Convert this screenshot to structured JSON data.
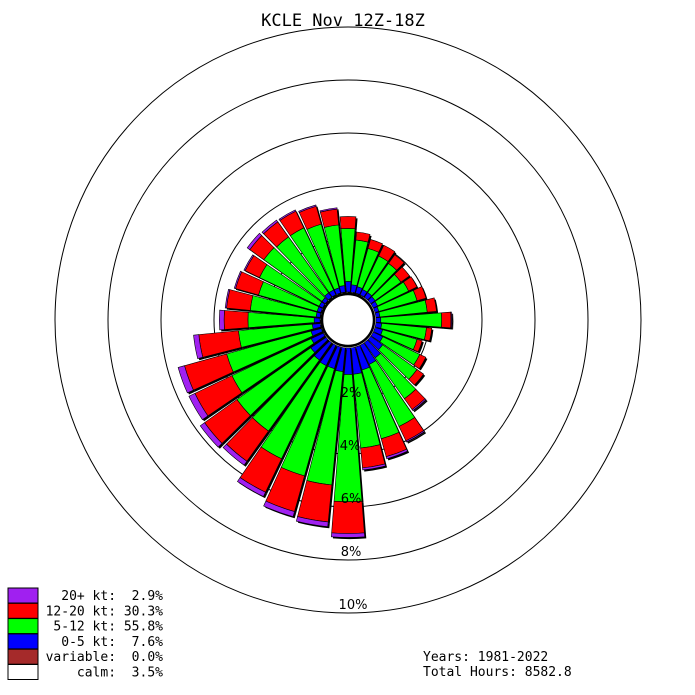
{
  "chart_data": {
    "type": "windrose",
    "title": "KCLE Nov 12Z-18Z",
    "direction_bins_deg": [
      0,
      10,
      20,
      30,
      40,
      50,
      60,
      70,
      80,
      90,
      100,
      110,
      120,
      130,
      140,
      150,
      160,
      170,
      180,
      190,
      200,
      210,
      220,
      230,
      240,
      250,
      260,
      270,
      280,
      290,
      300,
      310,
      320,
      330,
      340,
      350
    ],
    "radius_ticks_pct": [
      2,
      4,
      6,
      8,
      10
    ],
    "radius_tick_labels": [
      "2%",
      "4%",
      "6%",
      "8%",
      "10%"
    ],
    "series": [
      {
        "name": "0-5 kt",
        "color": "#0000ff",
        "values": [
          0.4,
          0.28,
          0.25,
          0.22,
          0.22,
          0.2,
          0.18,
          0.15,
          0.15,
          0.18,
          0.22,
          0.3,
          0.4,
          0.55,
          0.7,
          0.8,
          0.9,
          1.0,
          1.0,
          0.9,
          0.85,
          0.85,
          0.8,
          0.7,
          0.5,
          0.4,
          0.3,
          0.22,
          0.15,
          0.15,
          0.15,
          0.15,
          0.2,
          0.2,
          0.2,
          0.25
        ]
      },
      {
        "name": "5-12 kt",
        "color": "#00ff00",
        "values": [
          2.0,
          1.7,
          1.5,
          1.4,
          1.35,
          1.2,
          1.3,
          1.5,
          1.8,
          2.3,
          1.7,
          1.35,
          1.55,
          1.6,
          1.9,
          2.6,
          2.7,
          2.8,
          4.8,
          4.3,
          4.2,
          3.9,
          3.3,
          3.4,
          3.3,
          3.3,
          2.8,
          2.5,
          2.5,
          2.3,
          2.5,
          2.7,
          2.6,
          2.6,
          2.5,
          2.3
        ]
      },
      {
        "name": "12-20 kt",
        "color": "#ff0000",
        "values": [
          0.45,
          0.3,
          0.35,
          0.45,
          0.4,
          0.4,
          0.35,
          0.35,
          0.35,
          0.35,
          0.2,
          0.2,
          0.25,
          0.3,
          0.5,
          0.6,
          0.7,
          0.75,
          1.2,
          1.4,
          1.4,
          1.4,
          1.4,
          1.5,
          1.55,
          1.65,
          1.5,
          0.9,
          0.9,
          0.9,
          0.6,
          0.65,
          0.7,
          0.7,
          0.7,
          0.6
        ]
      },
      {
        "name": "20+ kt",
        "color": "#a020f0",
        "values": [
          0.0,
          0.0,
          0.0,
          0.0,
          0.0,
          0.0,
          0.0,
          0.0,
          0.0,
          0.03,
          0.0,
          0.0,
          0.0,
          0.0,
          0.05,
          0.05,
          0.08,
          0.08,
          0.15,
          0.18,
          0.2,
          0.18,
          0.18,
          0.2,
          0.25,
          0.25,
          0.2,
          0.18,
          0.05,
          0.05,
          0.05,
          0.12,
          0.08,
          0.05,
          0.05,
          0.05
        ]
      }
    ],
    "calm_radius_pct": 0.6
  },
  "legend": {
    "items": [
      {
        "label": "  20+ kt:  2.9%",
        "color": "#a020f0"
      },
      {
        "label": "12-20 kt: 30.3%",
        "color": "#ff0000"
      },
      {
        "label": " 5-12 kt: 55.8%",
        "color": "#00ff00"
      },
      {
        "label": "  0-5 kt:  7.6%",
        "color": "#0000ff"
      },
      {
        "label": "variable:  0.0%",
        "color": "#a52a2a"
      },
      {
        "label": "    calm:  3.5%",
        "color": "#ffffff"
      }
    ]
  },
  "footer": {
    "years": "Years: 1981-2022",
    "total_hours": "Total Hours: 8582.8"
  }
}
